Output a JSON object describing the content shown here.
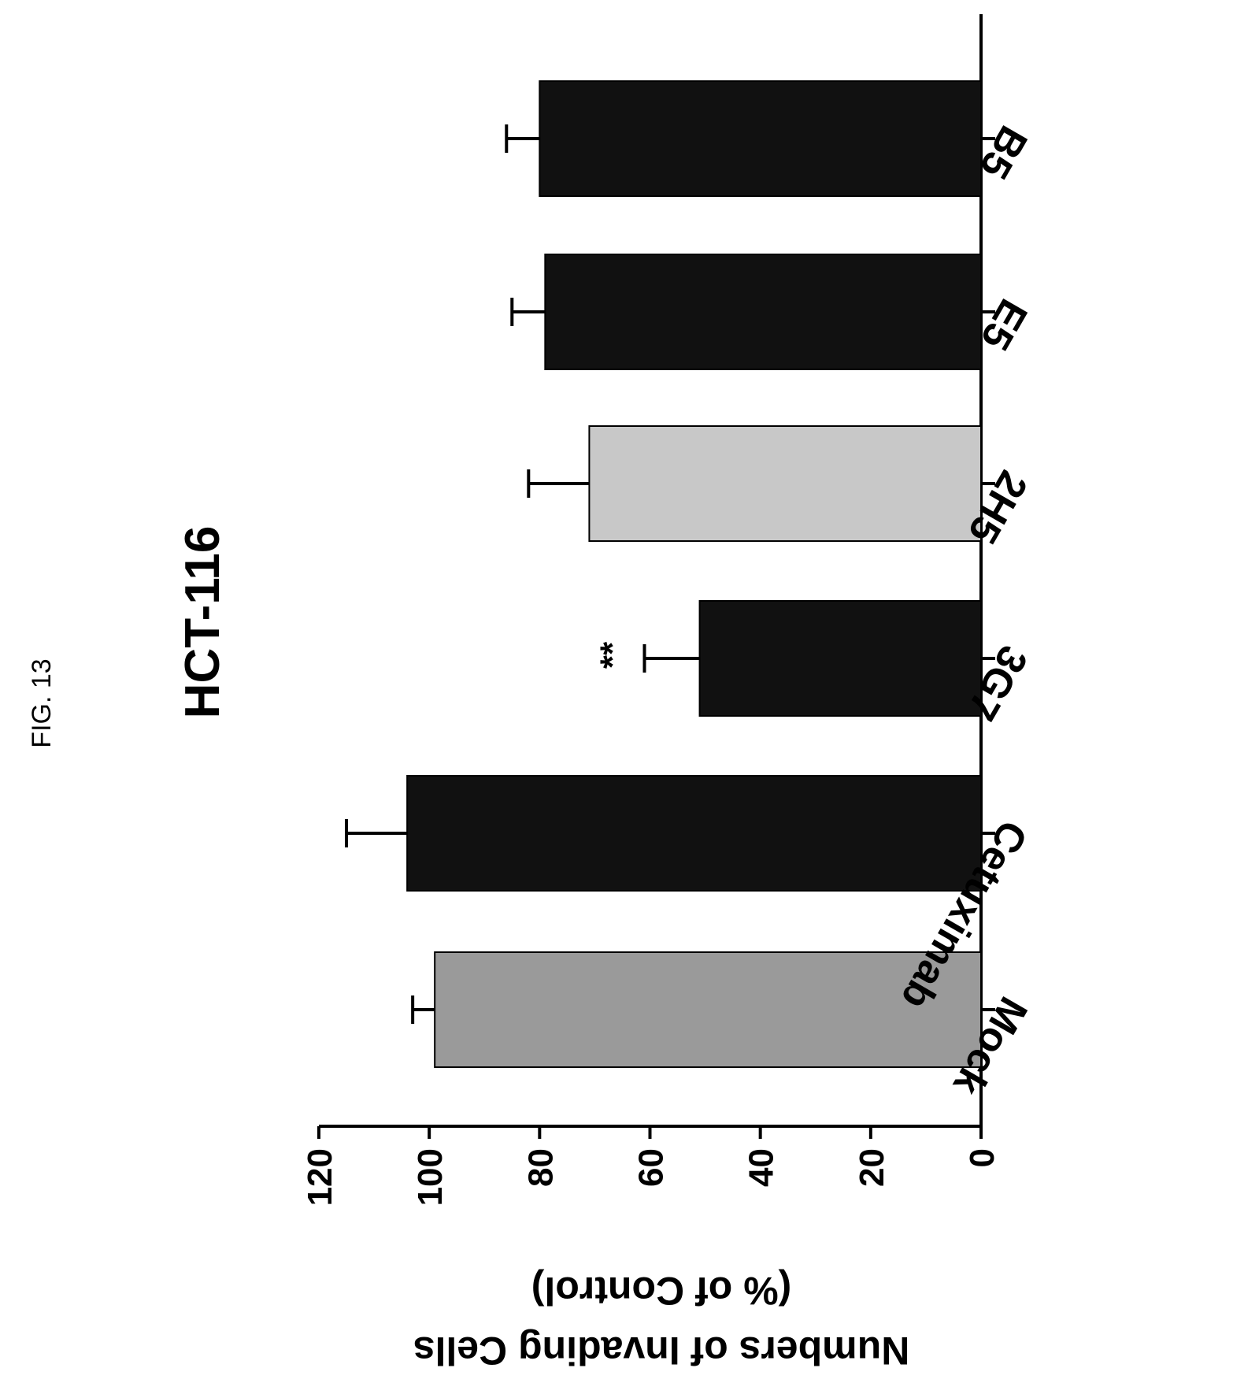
{
  "figure_label": "FIG. 13",
  "chart_data": {
    "type": "bar",
    "orientation": "rotated",
    "title": "HCT-116",
    "ylabel_line1": "Numbers of Invading Cells",
    "ylabel_line2": "(% of Control)",
    "xlabel": "",
    "categories": [
      "Mock",
      "Cetuximab",
      "3G7",
      "2H5",
      "E5",
      "B5"
    ],
    "values": [
      99,
      104,
      51,
      71,
      79,
      80
    ],
    "errors": [
      4,
      11,
      10,
      11,
      6,
      6
    ],
    "annotations": [
      "",
      "",
      "**",
      "",
      "",
      ""
    ],
    "bar_fills": [
      "#9a9a9a",
      "#111111",
      "#111111",
      "#c8c8c8",
      "#111111",
      "#111111"
    ],
    "ylim": [
      0,
      120
    ],
    "yticks": [
      "0",
      "20",
      "40",
      "60",
      "80",
      "100",
      "120"
    ],
    "grid": false,
    "legend": "none"
  }
}
